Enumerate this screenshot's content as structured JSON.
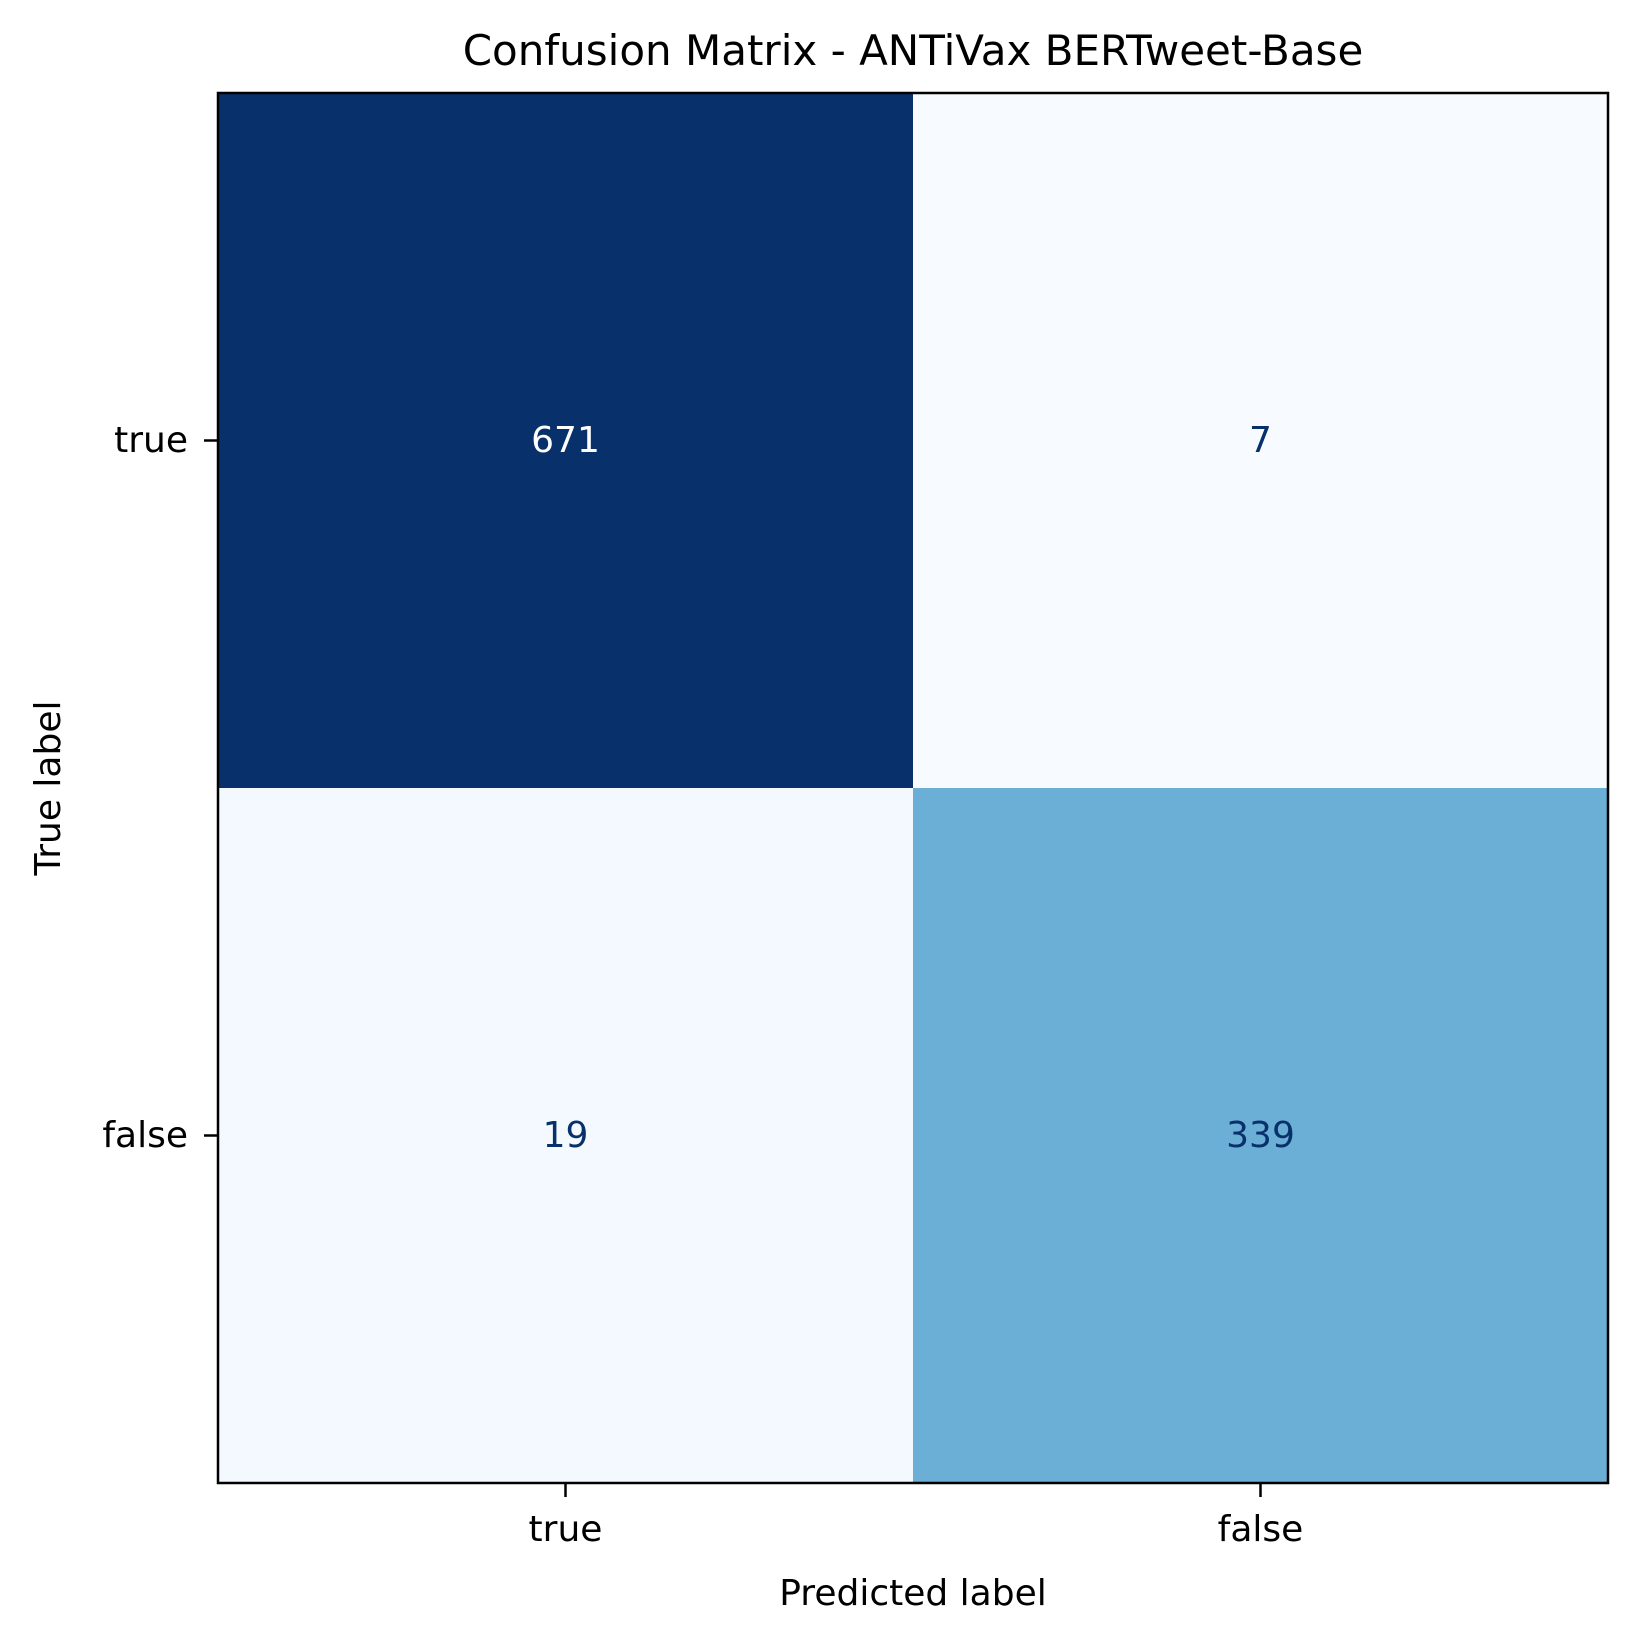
{
  "chart_data": {
    "type": "heatmap",
    "title": "Confusion Matrix - ANTiVax BERTweet-Base",
    "xlabel": "Predicted label",
    "ylabel": "True label",
    "x_categories": [
      "true",
      "false"
    ],
    "y_categories": [
      "true",
      "false"
    ],
    "values": [
      [
        671,
        7
      ],
      [
        19,
        339
      ]
    ],
    "colormap": "Blues",
    "colorbar": false,
    "grid": false,
    "text_color_dark": "#08306b",
    "text_color_light": "#ffffff"
  }
}
